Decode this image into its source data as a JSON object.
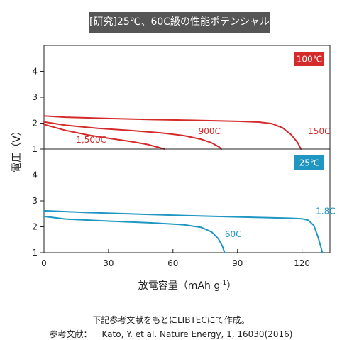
{
  "header": {
    "title": "[研究]25℃、60C級の性能ポテンシャル"
  },
  "footer": {
    "note": "下記参考文献をもとにLIBTECにて作成。",
    "ref_label": "参考文献：",
    "ref_text": "Kato, Y. et al. Nature Energy, 1, 16030(2016)"
  },
  "chart_data": {
    "type": "line",
    "xlabel_main": "放電容量（mAh g",
    "xlabel_sup": "-1",
    "xlabel_close": "）",
    "ylabel": "電圧（V）",
    "xlim": [
      0,
      133
    ],
    "xticks": [
      0,
      30,
      60,
      90,
      120
    ],
    "panels": [
      {
        "label": "100℃",
        "color": "#d42a2a",
        "ylim": [
          1,
          5
        ],
        "yticks": [
          1,
          2,
          3,
          4
        ],
        "series": [
          {
            "name": "150C",
            "points": [
              [
                0,
                2.28
              ],
              [
                10,
                2.23
              ],
              [
                30,
                2.18
              ],
              [
                50,
                2.14
              ],
              [
                70,
                2.11
              ],
              [
                90,
                2.07
              ],
              [
                100,
                2.04
              ],
              [
                106,
                1.98
              ],
              [
                111,
                1.82
              ],
              [
                115,
                1.55
              ],
              [
                118,
                1.25
              ],
              [
                119.5,
                1.0
              ]
            ]
          },
          {
            "name": "900C",
            "points": [
              [
                0,
                2.05
              ],
              [
                10,
                1.92
              ],
              [
                25,
                1.8
              ],
              [
                40,
                1.72
              ],
              [
                55,
                1.62
              ],
              [
                65,
                1.52
              ],
              [
                73,
                1.38
              ],
              [
                78,
                1.24
              ],
              [
                81.5,
                1.08
              ],
              [
                82.5,
                1.0
              ]
            ]
          },
          {
            "name": "1,500C",
            "points": [
              [
                0,
                1.95
              ],
              [
                10,
                1.72
              ],
              [
                20,
                1.55
              ],
              [
                30,
                1.42
              ],
              [
                40,
                1.3
              ],
              [
                48,
                1.18
              ],
              [
                53,
                1.07
              ],
              [
                56,
                1.0
              ]
            ]
          }
        ],
        "labels": [
          {
            "text": "150C",
            "x": 128,
            "y": 1.58
          },
          {
            "text": "900C",
            "x": 77,
            "y": 1.58
          },
          {
            "text": "1,500C",
            "x": 22,
            "y": 1.25
          }
        ]
      },
      {
        "label": "25℃",
        "color": "#1f97c2",
        "ylim": [
          1,
          5
        ],
        "yticks": [
          1,
          2,
          3,
          4
        ],
        "series": [
          {
            "name": "1.8C",
            "points": [
              [
                0,
                2.62
              ],
              [
                20,
                2.55
              ],
              [
                50,
                2.47
              ],
              [
                80,
                2.4
              ],
              [
                100,
                2.36
              ],
              [
                115,
                2.33
              ],
              [
                120,
                2.31
              ],
              [
                123,
                2.25
              ],
              [
                125.5,
                2.05
              ],
              [
                127.5,
                1.6
              ],
              [
                129,
                1.15
              ],
              [
                129.5,
                1.0
              ]
            ]
          },
          {
            "name": "60C",
            "points": [
              [
                0,
                2.4
              ],
              [
                10,
                2.3
              ],
              [
                30,
                2.22
              ],
              [
                50,
                2.15
              ],
              [
                65,
                2.08
              ],
              [
                73,
                1.98
              ],
              [
                78,
                1.8
              ],
              [
                81,
                1.55
              ],
              [
                83,
                1.25
              ],
              [
                84,
                1.0
              ]
            ]
          }
        ],
        "labels": [
          {
            "text": "1.8C",
            "x": 131,
            "y": 2.5
          },
          {
            "text": "60C",
            "x": 88,
            "y": 1.6
          }
        ]
      }
    ]
  }
}
